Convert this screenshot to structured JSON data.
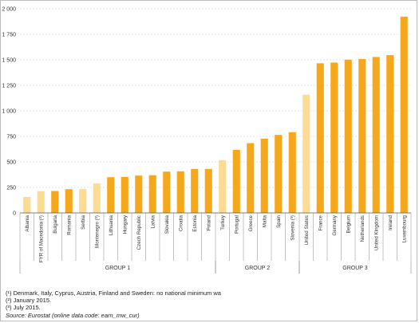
{
  "chart_data": {
    "type": "bar",
    "title": "",
    "xlabel": "",
    "ylabel": "",
    "ylim": [
      0,
      2000
    ],
    "yticks": [
      0,
      250,
      500,
      750,
      1000,
      1250,
      1500,
      1750,
      2000
    ],
    "ytick_labels": [
      "0",
      "250",
      "500",
      "750",
      "1 000",
      "1 250",
      "1 500",
      "1 750",
      "2 000"
    ],
    "grid": "horizontal dashed",
    "colors": {
      "primary": "#F5A81C",
      "highlight": "#FCDB93",
      "grid": "#c8c8c8",
      "axis": "#555555"
    },
    "categories": [
      "Albania",
      "FYR of Macedonia (²)",
      "Bulgaria",
      "Romania",
      "Serbia",
      "Montenegro (²)",
      "Lithuania",
      "Hungary",
      "Czech Republic",
      "Latvia",
      "Slovakia",
      "Croatia",
      "Estonia",
      "Poland",
      "Turkey",
      "Portugal",
      "Greece",
      "Malta",
      "Spain",
      "Slovenia (³)",
      "United States",
      "France",
      "Germany",
      "Belgium",
      "Netherlands",
      "United Kingdom",
      "Ireland",
      "Luxembourg"
    ],
    "values": [
      157,
      214,
      215,
      233,
      235,
      288,
      350,
      353,
      366,
      370,
      405,
      408,
      430,
      431,
      517,
      618,
      684,
      728,
      764,
      791,
      1158,
      1466,
      1473,
      1502,
      1508,
      1528,
      1546,
      1923
    ],
    "highlight": [
      true,
      true,
      false,
      false,
      true,
      true,
      false,
      false,
      false,
      false,
      false,
      false,
      false,
      false,
      true,
      false,
      false,
      false,
      false,
      false,
      true,
      false,
      false,
      false,
      false,
      false,
      false,
      false
    ],
    "groups": [
      {
        "label": "GROUP 1",
        "start": 0,
        "end": 13
      },
      {
        "label": "GROUP 2",
        "start": 14,
        "end": 19
      },
      {
        "label": "GROUP 3",
        "start": 20,
        "end": 27
      }
    ]
  },
  "footnotes": {
    "note1": "(¹) Denmark, Italy, Cyprus, Austria, Finland and Sweden: no national minimum wa",
    "note2": "(²) January 2015.",
    "note3": "(³) July 2015.",
    "source": "Source: Eurostat (online data code: earn_mw_cur)"
  }
}
